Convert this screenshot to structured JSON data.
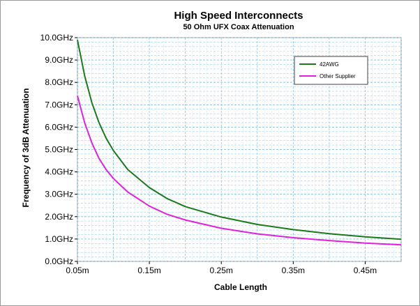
{
  "chart_data": {
    "type": "line",
    "title": "High Speed Interconnects",
    "subtitle": "50 Ohm UFX Coax Attenuation",
    "xlabel": "Cable Length",
    "ylabel": "Frequency of 3dB Attenuation",
    "xlim": [
      0.05,
      0.5
    ],
    "ylim": [
      0,
      10
    ],
    "x_ticks": [
      {
        "value": 0.05,
        "label": "0.05m"
      },
      {
        "value": 0.15,
        "label": "0.15m"
      },
      {
        "value": 0.25,
        "label": "0.25m"
      },
      {
        "value": 0.35,
        "label": "0.35m"
      },
      {
        "value": 0.45,
        "label": "0.45m"
      }
    ],
    "y_ticks": [
      {
        "value": 0,
        "label": "0.0GHz"
      },
      {
        "value": 1,
        "label": "1.0GHz"
      },
      {
        "value": 2,
        "label": "2.0GHz"
      },
      {
        "value": 3,
        "label": "3.0GHz"
      },
      {
        "value": 4,
        "label": "4.0GHz"
      },
      {
        "value": 5,
        "label": "5.0GHz"
      },
      {
        "value": 6,
        "label": "6.0GHz"
      },
      {
        "value": 7,
        "label": "7.0GHz"
      },
      {
        "value": 8,
        "label": "8.0GHz"
      },
      {
        "value": 9,
        "label": "9.0GHz"
      },
      {
        "value": 10,
        "label": "10.0GHz"
      }
    ],
    "grid": true,
    "legend_position": "top-right",
    "series": [
      {
        "name": "42AWG",
        "color": "#1a7a1a",
        "x": [
          0.05,
          0.06,
          0.07,
          0.08,
          0.09,
          0.1,
          0.12,
          0.15,
          0.175,
          0.2,
          0.25,
          0.3,
          0.35,
          0.4,
          0.45,
          0.5
        ],
        "y": [
          9.9,
          8.3,
          7.1,
          6.2,
          5.5,
          4.95,
          4.1,
          3.3,
          2.8,
          2.45,
          1.98,
          1.65,
          1.42,
          1.24,
          1.1,
          0.99
        ]
      },
      {
        "name": "Other Supplier",
        "color": "#e020e0",
        "x": [
          0.05,
          0.06,
          0.07,
          0.08,
          0.09,
          0.1,
          0.12,
          0.15,
          0.175,
          0.2,
          0.25,
          0.3,
          0.35,
          0.4,
          0.45,
          0.5
        ],
        "y": [
          7.4,
          6.2,
          5.3,
          4.6,
          4.1,
          3.7,
          3.1,
          2.47,
          2.1,
          1.85,
          1.48,
          1.23,
          1.06,
          0.93,
          0.82,
          0.74
        ]
      }
    ]
  }
}
